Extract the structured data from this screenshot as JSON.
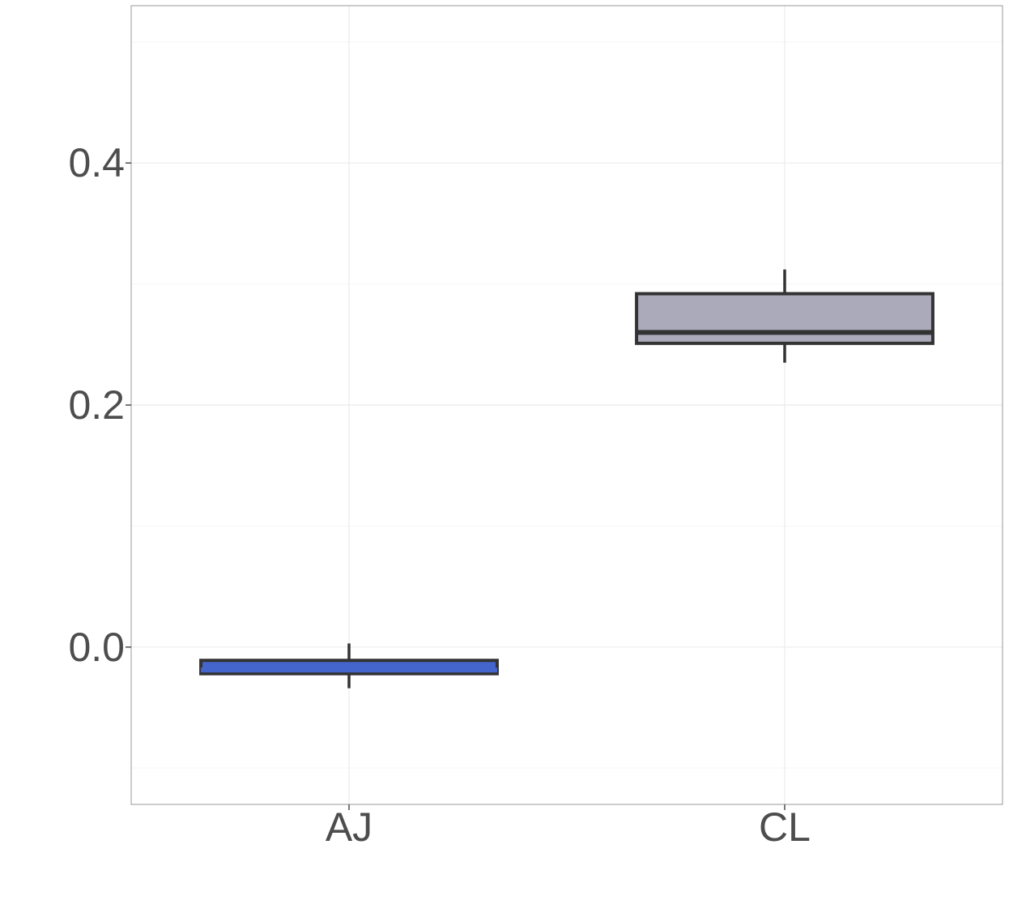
{
  "chart_data": {
    "type": "boxplot",
    "title": "",
    "xlabel": "",
    "ylabel": "",
    "ylim": [
      -0.13,
      0.53
    ],
    "y_ticks": [
      0.0,
      0.2,
      0.4
    ],
    "y_tick_labels": [
      "0.0",
      "0.2",
      "0.4"
    ],
    "y_minor_ticks": [
      -0.1,
      0.1,
      0.3,
      0.5
    ],
    "grid": true,
    "categories": [
      "AJ",
      "CL"
    ],
    "boxes": [
      {
        "category": "AJ",
        "whisker_low": -0.034,
        "q1": -0.022,
        "median": -0.019,
        "q3": -0.011,
        "whisker_high": 0.003,
        "fill": "#4466cc",
        "median_color": "#4466cc"
      },
      {
        "category": "CL",
        "whisker_low": 0.235,
        "q1": 0.251,
        "median": 0.26,
        "q3": 0.292,
        "whisker_high": 0.312,
        "fill": "#abaabb",
        "median_color": "#333333"
      }
    ],
    "outline_color": "#333333",
    "tick_color": "#4d4d4d",
    "grid_color": "#ebebeb",
    "panel_border_color": "#999999"
  }
}
